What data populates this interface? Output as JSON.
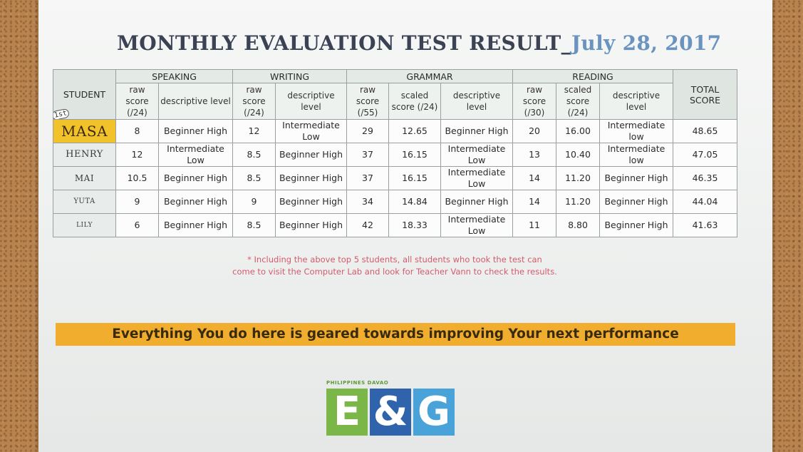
{
  "document": {
    "title": "MONTHLY EVALUATION TEST RESULT_",
    "date": "July 28, 2017"
  },
  "table": {
    "student_header": "STUDENT",
    "first_badge": "1st",
    "total_header": "TOTAL SCORE",
    "groups": {
      "speaking": "SPEAKING",
      "writing": "WRITING",
      "grammar": "GRAMMAR",
      "reading": "READING"
    },
    "subheaders": {
      "speaking_raw": "raw score (/24)",
      "speaking_level": "descriptive level",
      "writing_raw": "raw score (/24)",
      "writing_level": "descriptive level",
      "grammar_raw": "raw score (/55)",
      "grammar_scaled": "scaled score (/24)",
      "grammar_level": "descriptive level",
      "reading_raw": "raw score (/30)",
      "reading_scaled": "scaled score (/24)",
      "reading_level": "descriptive level"
    },
    "rows": [
      {
        "name": "MASA",
        "sp_raw": "8",
        "sp_level": "Beginner High",
        "wr_raw": "12",
        "wr_level": "Intermediate Low",
        "gr_raw": "29",
        "gr_scaled": "12.65",
        "gr_level": "Beginner High",
        "rd_raw": "20",
        "rd_scaled": "16.00",
        "rd_level": "Intermediate low",
        "total": "48.65"
      },
      {
        "name": "HENRY",
        "sp_raw": "12",
        "sp_level": "Intermediate Low",
        "wr_raw": "8.5",
        "wr_level": "Beginner High",
        "gr_raw": "37",
        "gr_scaled": "16.15",
        "gr_level": "Intermediate Low",
        "rd_raw": "13",
        "rd_scaled": "10.40",
        "rd_level": "Intermediate low",
        "total": "47.05"
      },
      {
        "name": "MAI",
        "sp_raw": "10.5",
        "sp_level": "Beginner High",
        "wr_raw": "8.5",
        "wr_level": "Beginner High",
        "gr_raw": "37",
        "gr_scaled": "16.15",
        "gr_level": "Intermediate Low",
        "rd_raw": "14",
        "rd_scaled": "11.20",
        "rd_level": "Beginner High",
        "total": "46.35"
      },
      {
        "name": "YUTA",
        "sp_raw": "9",
        "sp_level": "Beginner High",
        "wr_raw": "9",
        "wr_level": "Beginner High",
        "gr_raw": "34",
        "gr_scaled": "14.84",
        "gr_level": "Beginner High",
        "rd_raw": "14",
        "rd_scaled": "11.20",
        "rd_level": "Beginner High",
        "total": "44.04"
      },
      {
        "name": "LILY",
        "sp_raw": "6",
        "sp_level": "Beginner High",
        "wr_raw": "8.5",
        "wr_level": "Beginner High",
        "gr_raw": "42",
        "gr_scaled": "18.33",
        "gr_level": "Intermediate Low",
        "rd_raw": "11",
        "rd_scaled": "8.80",
        "rd_level": "Beginner High",
        "total": "41.63"
      }
    ]
  },
  "note": {
    "line1": "* Including the above top 5 students, all students who took the test can",
    "line2": "come to visit the Computer Lab and look for Teacher Vann to check the results."
  },
  "banner": "Everything You do here is geared towards improving Your next performance",
  "logo": {
    "caption": "PHILIPPINES DAVAO",
    "tiles": [
      "E",
      "&",
      "G"
    ],
    "colors": {
      "e": "#7ab648",
      "amp": "#2f64ad",
      "g": "#4aa3d8"
    }
  },
  "colors": {
    "title": "#3a4253",
    "date": "#6b93c0",
    "first_highlight": "#f1c22a",
    "banner": "#f0ad2e",
    "note": "#d25b6c"
  }
}
